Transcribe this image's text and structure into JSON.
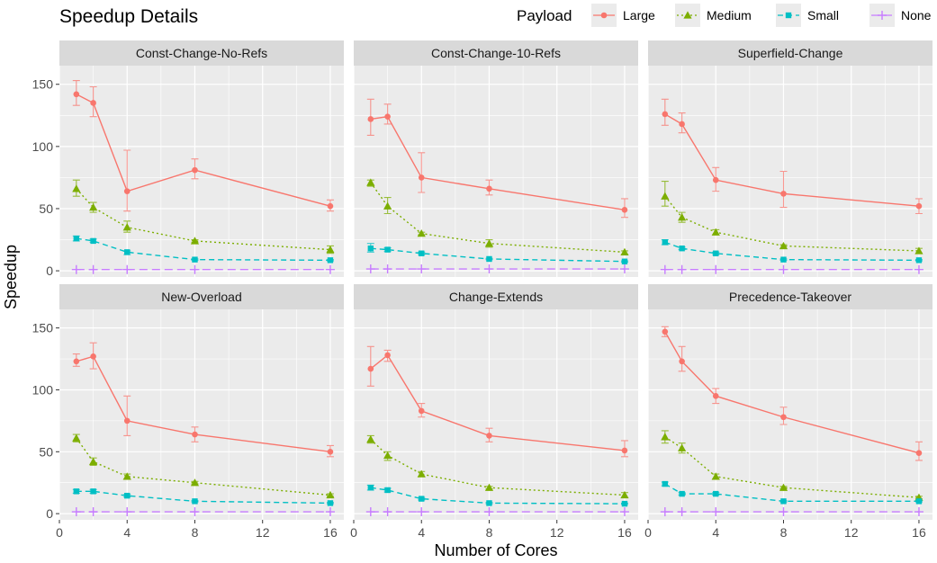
{
  "chart_data": {
    "type": "line",
    "title": "Speedup Details",
    "xlabel": "Number of Cores",
    "ylabel": "Speedup",
    "x": [
      1,
      2,
      4,
      8,
      16
    ],
    "xlim": [
      0,
      16.8
    ],
    "ylim": [
      -5,
      165
    ],
    "xticks": [
      0,
      4,
      8,
      12,
      16
    ],
    "yticks": [
      0,
      50,
      100,
      150
    ],
    "grid": true,
    "legend": {
      "title": "Payload",
      "position": "top-right",
      "entries": [
        "Large",
        "Medium",
        "Small",
        "None"
      ]
    },
    "series_style": [
      {
        "name": "Large",
        "color": "#F8766D",
        "line": "solid",
        "marker": "circle"
      },
      {
        "name": "Medium",
        "color": "#7CAE00",
        "line": "dotted",
        "marker": "triangle"
      },
      {
        "name": "Small",
        "color": "#00BFC4",
        "line": "dashed",
        "marker": "square"
      },
      {
        "name": "None",
        "color": "#C77CFF",
        "line": "longdash",
        "marker": "plus"
      }
    ],
    "panels": [
      {
        "title": "Const-Change-No-Refs",
        "series": [
          {
            "name": "Large",
            "values": [
              142,
              135,
              64,
              81,
              52
            ],
            "lower": [
              133,
              124,
              48,
              74,
              48
            ],
            "upper": [
              153,
              148,
              97,
              90,
              57
            ]
          },
          {
            "name": "Medium",
            "values": [
              66,
              51,
              35,
              24,
              17
            ],
            "lower": [
              60,
              47,
              31,
              23,
              14
            ],
            "upper": [
              73,
              55,
              40,
              25,
              20
            ]
          },
          {
            "name": "Small",
            "values": [
              26,
              24,
              15,
              9,
              8.5
            ],
            "lower": [
              24,
              23,
              13,
              8.5,
              8
            ],
            "upper": [
              28,
              25.5,
              16,
              9.5,
              9
            ]
          },
          {
            "name": "None",
            "values": [
              1,
              1,
              1,
              1,
              1
            ]
          }
        ]
      },
      {
        "title": "Const-Change-10-Refs",
        "series": [
          {
            "name": "Large",
            "values": [
              122,
              124,
              75,
              66,
              49
            ],
            "lower": [
              109,
              118,
              63,
              61,
              43
            ],
            "upper": [
              138,
              134,
              95,
              73,
              58
            ]
          },
          {
            "name": "Medium",
            "values": [
              71,
              52,
              30,
              22,
              15
            ],
            "lower": [
              68,
              46,
              29,
              19,
              13
            ],
            "upper": [
              73,
              59,
              31,
              25,
              16
            ]
          },
          {
            "name": "Small",
            "values": [
              18,
              17,
              14,
              9.5,
              7.5
            ],
            "lower": [
              15,
              15.5,
              13,
              9,
              7
            ],
            "upper": [
              22,
              18.5,
              15,
              10,
              8
            ]
          },
          {
            "name": "None",
            "values": [
              1.5,
              1.5,
              1.5,
              1.5,
              1.5
            ]
          }
        ]
      },
      {
        "title": "Superfield-Change",
        "series": [
          {
            "name": "Large",
            "values": [
              126,
              118,
              73,
              62,
              52
            ],
            "lower": [
              117,
              111,
              64,
              51,
              46
            ],
            "upper": [
              138,
              127,
              83,
              80,
              58
            ]
          },
          {
            "name": "Medium",
            "values": [
              60,
              43,
              31,
              20,
              16
            ],
            "lower": [
              52,
              39,
              29,
              18,
              14
            ],
            "upper": [
              72,
              47,
              33,
              21,
              18
            ]
          },
          {
            "name": "Small",
            "values": [
              23,
              18,
              14,
              9,
              8.5
            ],
            "lower": [
              21,
              17,
              13,
              8.5,
              8
            ],
            "upper": [
              25,
              19,
              15,
              9.5,
              9
            ]
          },
          {
            "name": "None",
            "values": [
              1,
              1,
              1,
              1,
              1
            ]
          }
        ]
      },
      {
        "title": "New-Overload",
        "series": [
          {
            "name": "Large",
            "values": [
              123,
              127,
              75,
              64,
              50
            ],
            "lower": [
              119,
              117,
              63,
              58,
              46
            ],
            "upper": [
              129,
              138,
              95,
              70,
              55
            ]
          },
          {
            "name": "Medium",
            "values": [
              61,
              42,
              30,
              25,
              15
            ],
            "lower": [
              58,
              39,
              28,
              24,
              14
            ],
            "upper": [
              64,
              45,
              32,
              26,
              16
            ]
          },
          {
            "name": "Small",
            "values": [
              18,
              18,
              14.5,
              10,
              8.5
            ],
            "lower": [
              16.5,
              16.5,
              13.5,
              9.5,
              8
            ],
            "upper": [
              19.5,
              19.5,
              15.5,
              10.5,
              9
            ]
          },
          {
            "name": "None",
            "values": [
              1.5,
              1.5,
              1.5,
              1.5,
              1.5
            ]
          }
        ]
      },
      {
        "title": "Change-Extends",
        "series": [
          {
            "name": "Large",
            "values": [
              117,
              128,
              83,
              63,
              51
            ],
            "lower": [
              103,
              123,
              78,
              58,
              46
            ],
            "upper": [
              135,
              132,
              89,
              69,
              59
            ]
          },
          {
            "name": "Medium",
            "values": [
              60,
              47,
              32,
              21,
              15
            ],
            "lower": [
              57,
              43,
              30,
              20,
              13
            ],
            "upper": [
              63,
              50,
              34,
              22,
              17
            ]
          },
          {
            "name": "Small",
            "values": [
              21,
              19,
              12,
              8.5,
              8
            ],
            "lower": [
              19,
              17.5,
              11,
              8,
              7.5
            ],
            "upper": [
              23,
              20.5,
              13,
              9,
              8.5
            ]
          },
          {
            "name": "None",
            "values": [
              1.5,
              1.5,
              1.5,
              1.5,
              1.5
            ]
          }
        ]
      },
      {
        "title": "Precedence-Takeover",
        "series": [
          {
            "name": "Large",
            "values": [
              147,
              123,
              95,
              78,
              49
            ],
            "lower": [
              143,
              115,
              89,
              72,
              43
            ],
            "upper": [
              151,
              135,
              101,
              86,
              58
            ]
          },
          {
            "name": "Medium",
            "values": [
              62,
              53,
              30,
              21,
              13
            ],
            "lower": [
              57,
              49,
              28,
              20,
              12
            ],
            "upper": [
              67,
              57,
              32,
              22,
              14
            ]
          },
          {
            "name": "Small",
            "values": [
              24,
              16,
              16,
              10,
              10
            ],
            "lower": [
              22.5,
              15,
              15,
              9.5,
              9.5
            ],
            "upper": [
              25.5,
              17,
              17,
              10.5,
              10.5
            ]
          },
          {
            "name": "None",
            "values": [
              1.5,
              1.5,
              1.5,
              1.5,
              1.5
            ]
          }
        ]
      }
    ]
  }
}
